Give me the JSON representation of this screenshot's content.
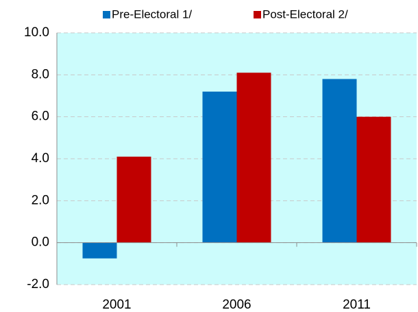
{
  "chart_data": {
    "type": "bar",
    "categories": [
      "2001",
      "2006",
      "2011"
    ],
    "series": [
      {
        "name": "Pre-Electoral 1/",
        "color": "#0070c0",
        "values": [
          -0.75,
          7.2,
          7.8
        ]
      },
      {
        "name": "Post-Electoral 2/",
        "color": "#c00000",
        "values": [
          4.1,
          8.1,
          6.0
        ]
      }
    ],
    "ylim": [
      -2,
      10
    ],
    "yticks": [
      {
        "value": -2,
        "label": "-2.0"
      },
      {
        "value": 0,
        "label": "0.0"
      },
      {
        "value": 2,
        "label": "2.0"
      },
      {
        "value": 4,
        "label": "4.0"
      },
      {
        "value": 6,
        "label": "6.0"
      },
      {
        "value": 8,
        "label": "8.0"
      },
      {
        "value": 10,
        "label": "10.0"
      }
    ],
    "grid": true,
    "legend": "top",
    "background": "#ccfcfc"
  }
}
